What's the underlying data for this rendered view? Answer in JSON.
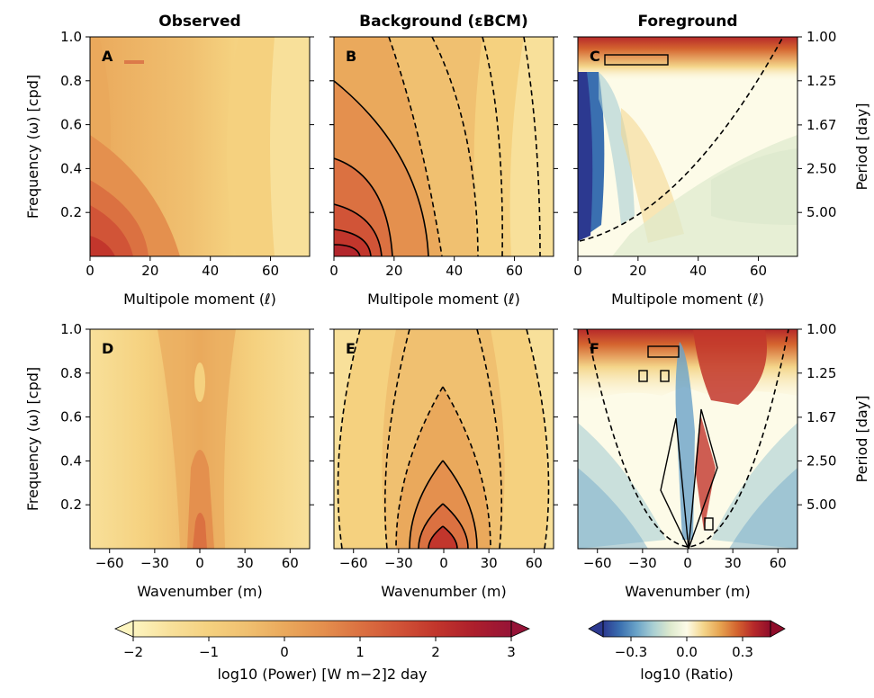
{
  "chart_data": [
    {
      "type": "heatmap",
      "panel": "A",
      "title": "Observed",
      "xlabel": "Multipole moment (ℓ)",
      "ylabel": "Frequency (ω) [cpd]",
      "xlim": [
        0,
        73
      ],
      "ylim": [
        0,
        1.0
      ],
      "xticks": [
        "0",
        "20",
        "40",
        "60"
      ],
      "yticks": [
        "0.2",
        "0.4",
        "0.6",
        "0.8",
        "1.0"
      ]
    },
    {
      "type": "heatmap",
      "panel": "B",
      "title": "Background (εBCM)",
      "xlabel": "Multipole moment (ℓ)",
      "xlim": [
        0,
        73
      ],
      "ylim": [
        0,
        1.0
      ],
      "xticks": [
        "0",
        "20",
        "40",
        "60"
      ]
    },
    {
      "type": "heatmap",
      "panel": "C",
      "title": "Foreground",
      "xlabel": "Multipole moment (ℓ)",
      "ylabel_right": "Period [day]",
      "xlim": [
        0,
        73
      ],
      "ylim": [
        0,
        1.0
      ],
      "xticks": [
        "0",
        "20",
        "40",
        "60"
      ],
      "period_ticks": [
        "1.00",
        "1.25",
        "1.67",
        "2.50",
        "5.00"
      ]
    },
    {
      "type": "heatmap",
      "panel": "D",
      "xlabel": "Wavenumber (m)",
      "ylabel": "Frequency (ω) [cpd]",
      "xlim": [
        -73,
        73
      ],
      "ylim": [
        0,
        1.0
      ],
      "xticks": [
        "−60",
        "−30",
        "0",
        "30",
        "60"
      ],
      "yticks": [
        "0.2",
        "0.4",
        "0.6",
        "0.8",
        "1.0"
      ]
    },
    {
      "type": "heatmap",
      "panel": "E",
      "xlabel": "Wavenumber (m)",
      "xlim": [
        -73,
        73
      ],
      "ylim": [
        0,
        1.0
      ],
      "xticks": [
        "−60",
        "−30",
        "0",
        "30",
        "60"
      ]
    },
    {
      "type": "heatmap",
      "panel": "F",
      "xlabel": "Wavenumber (m)",
      "ylabel_right": "Period [day]",
      "xlim": [
        -73,
        73
      ],
      "ylim": [
        0,
        1.0
      ],
      "xticks": [
        "−60",
        "−30",
        "0",
        "30",
        "60"
      ],
      "period_ticks": [
        "1.00",
        "1.25",
        "1.67",
        "2.50",
        "5.00"
      ]
    }
  ],
  "colorbar_power": {
    "label": "log10 (Power) [W m−2]2 day",
    "ticks": [
      "−2",
      "−1",
      "0",
      "1",
      "2",
      "3"
    ],
    "range": [
      -2,
      3
    ],
    "colors": [
      "#fdf5c0",
      "#f8e09a",
      "#f5d17f",
      "#f0c070",
      "#eaa95c",
      "#e4904e",
      "#db7141",
      "#d15437",
      "#c2362c",
      "#ad1f2c",
      "#961337"
    ]
  },
  "colorbar_ratio": {
    "label": "log10 (Ratio)",
    "ticks": [
      "−0.3",
      "0.0",
      "0.3"
    ],
    "range": [
      -0.45,
      0.45
    ],
    "colors": [
      "#2c3990",
      "#3a6fb0",
      "#6aa3c8",
      "#a9cfd3",
      "#dde9cd",
      "#fdfbe8",
      "#f4d58a",
      "#e6a350",
      "#d4642f",
      "#b7292a",
      "#8f0c2a"
    ]
  }
}
